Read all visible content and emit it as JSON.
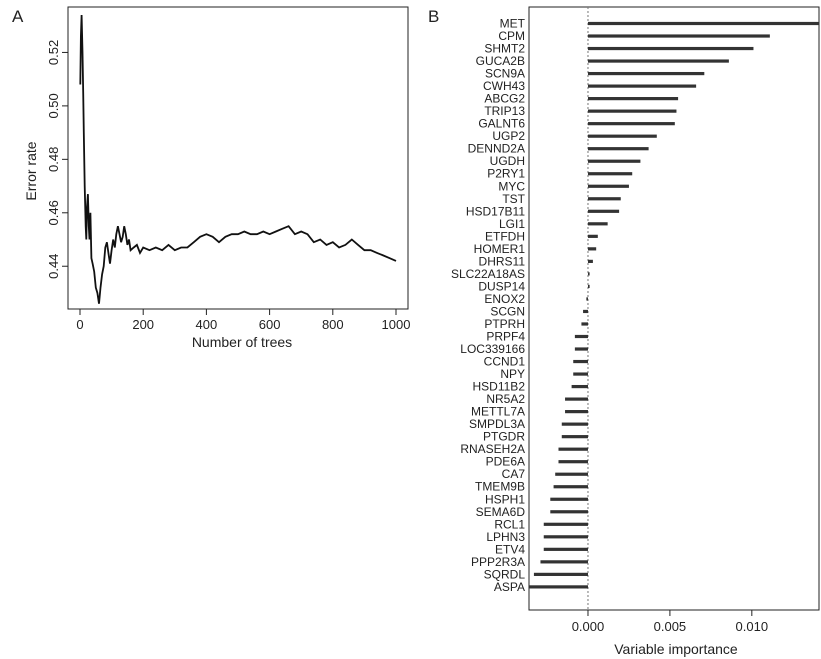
{
  "panels": {
    "a_label": "A",
    "b_label": "B"
  },
  "chart_data": [
    {
      "type": "line",
      "panel": "A",
      "xlabel": "Number of trees",
      "ylabel": "Error rate",
      "xlim": [
        0,
        1000
      ],
      "ylim": [
        0.424,
        0.537
      ],
      "xticks": [
        0,
        200,
        400,
        600,
        800,
        1000
      ],
      "yticks": [
        0.44,
        0.46,
        0.48,
        0.5,
        0.52
      ],
      "ytick_labels": [
        "0.44",
        "0.46",
        "0.48",
        "0.50",
        "0.52"
      ],
      "grid": false,
      "series": [
        {
          "x": [
            1,
            3,
            5,
            8,
            10,
            12,
            15,
            18,
            20,
            22,
            25,
            28,
            30,
            33,
            36,
            40,
            45,
            50,
            55,
            60,
            65,
            70,
            75,
            80,
            85,
            90,
            95,
            100,
            105,
            110,
            115,
            120,
            125,
            130,
            135,
            140,
            145,
            150,
            155,
            160,
            170,
            180,
            190,
            200,
            220,
            240,
            260,
            280,
            300,
            320,
            340,
            360,
            380,
            400,
            420,
            440,
            460,
            480,
            500,
            520,
            540,
            560,
            580,
            600,
            620,
            640,
            660,
            680,
            700,
            720,
            740,
            760,
            780,
            800,
            820,
            840,
            860,
            880,
            900,
            920,
            940,
            960,
            980,
            1000
          ],
          "y": [
            0.508,
            0.526,
            0.534,
            0.52,
            0.505,
            0.49,
            0.47,
            0.455,
            0.45,
            0.462,
            0.467,
            0.455,
            0.45,
            0.46,
            0.443,
            0.441,
            0.438,
            0.432,
            0.43,
            0.426,
            0.432,
            0.437,
            0.44,
            0.447,
            0.449,
            0.445,
            0.441,
            0.446,
            0.45,
            0.447,
            0.452,
            0.455,
            0.452,
            0.449,
            0.451,
            0.455,
            0.452,
            0.448,
            0.45,
            0.446,
            0.447,
            0.448,
            0.445,
            0.447,
            0.446,
            0.447,
            0.446,
            0.448,
            0.446,
            0.447,
            0.447,
            0.449,
            0.451,
            0.452,
            0.451,
            0.449,
            0.451,
            0.452,
            0.452,
            0.453,
            0.452,
            0.452,
            0.453,
            0.452,
            0.453,
            0.454,
            0.455,
            0.452,
            0.453,
            0.452,
            0.449,
            0.45,
            0.448,
            0.449,
            0.447,
            0.448,
            0.45,
            0.448,
            0.446,
            0.446,
            0.445,
            0.444,
            0.443,
            0.442
          ]
        }
      ]
    },
    {
      "type": "bar",
      "orientation": "horizontal",
      "panel": "B",
      "xlabel": "Variable importance",
      "ylabel": "",
      "xlim": [
        -0.0036,
        0.0141
      ],
      "xticks": [
        0.0,
        0.005,
        0.01
      ],
      "xtick_labels": [
        "0.000",
        "0.005",
        "0.010"
      ],
      "grid": false,
      "categories": [
        "MET",
        "CPM",
        "SHMT2",
        "GUCA2B",
        "SCN9A",
        "CWH43",
        "ABCG2",
        "TRIP13",
        "GALNT6",
        "UGP2",
        "DENND2A",
        "UGDH",
        "P2RY1",
        "MYC",
        "TST",
        "HSD17B11",
        "LGI1",
        "ETFDH",
        "HOMER1",
        "DHRS11",
        "SLC22A18AS",
        "DUSP14",
        "ENOX2",
        "SCGN",
        "PTPRH",
        "PRPF4",
        "LOC339166",
        "CCND1",
        "NPY",
        "HSD11B2",
        "NR5A2",
        "METTL7A",
        "SMPDL3A",
        "PTGDR",
        "RNASEH2A",
        "PDE6A",
        "CA7",
        "TMEM9B",
        "HSPH1",
        "SEMA6D",
        "RCL1",
        "LPHN3",
        "ETV4",
        "PPP2R3A",
        "SQRDL",
        "ASPA"
      ],
      "values": [
        0.0141,
        0.0111,
        0.0101,
        0.0086,
        0.0071,
        0.0066,
        0.0055,
        0.0054,
        0.0053,
        0.0042,
        0.0037,
        0.0032,
        0.0027,
        0.0025,
        0.002,
        0.0019,
        0.0012,
        0.0006,
        0.0005,
        0.0003,
        0.0001,
        0.0001,
        -0.0001,
        -0.0003,
        -0.0004,
        -0.0008,
        -0.0008,
        -0.0009,
        -0.0009,
        -0.001,
        -0.0014,
        -0.0014,
        -0.0016,
        -0.0016,
        -0.0018,
        -0.0018,
        -0.002,
        -0.0021,
        -0.0023,
        -0.0023,
        -0.0027,
        -0.0027,
        -0.0027,
        -0.0029,
        -0.0033,
        -0.0036
      ]
    }
  ]
}
